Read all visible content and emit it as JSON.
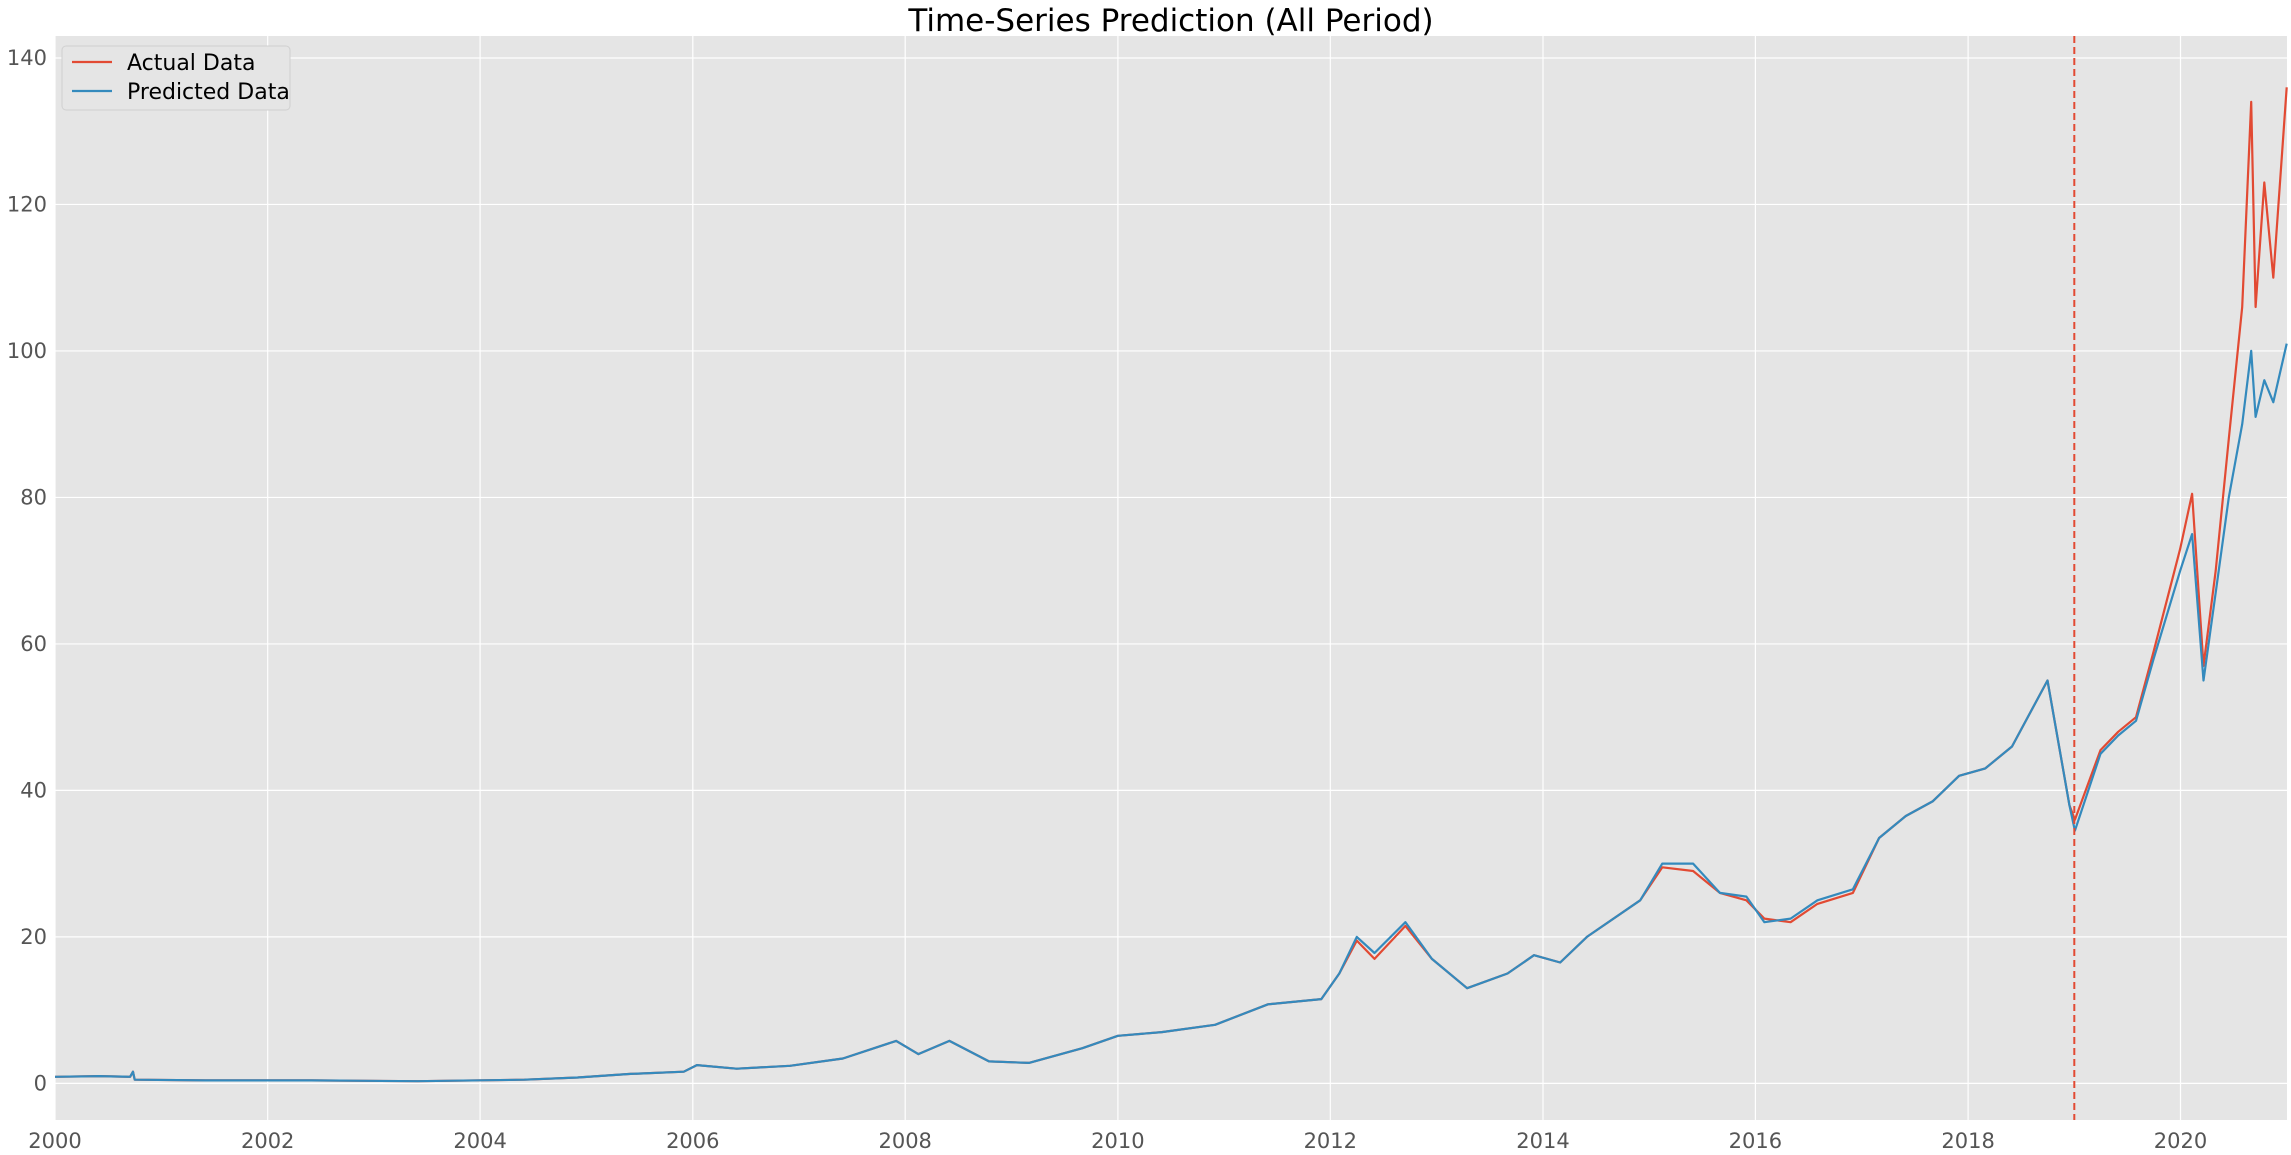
{
  "chart_data": {
    "type": "line",
    "title": "Time-Series Prediction (All Period)",
    "xlabel": "",
    "ylabel": "",
    "x_range": [
      "2000-01-01",
      "2021-01-01"
    ],
    "ylim": [
      -5,
      143
    ],
    "x_ticks": [
      "2000",
      "2002",
      "2004",
      "2006",
      "2008",
      "2010",
      "2012",
      "2014",
      "2016",
      "2018",
      "2020"
    ],
    "y_ticks": [
      0,
      20,
      40,
      60,
      80,
      100,
      120,
      140
    ],
    "grid": true,
    "legend_position": "upper left",
    "split_marker": {
      "date": "2019-01-01",
      "color": "#E24A33",
      "style": "dashed"
    },
    "series": [
      {
        "name": "Actual Data",
        "color": "#E24A33",
        "points": [
          [
            "2000-01-01",
            0.9
          ],
          [
            "2000-06-01",
            1.0
          ],
          [
            "2000-09-15",
            0.9
          ],
          [
            "2000-09-25",
            1.6
          ],
          [
            "2000-10-01",
            0.5
          ],
          [
            "2001-06-01",
            0.4
          ],
          [
            "2002-06-01",
            0.4
          ],
          [
            "2003-06-01",
            0.3
          ],
          [
            "2004-06-01",
            0.5
          ],
          [
            "2004-12-01",
            0.8
          ],
          [
            "2005-06-01",
            1.3
          ],
          [
            "2005-12-01",
            1.6
          ],
          [
            "2006-01-15",
            2.5
          ],
          [
            "2006-06-01",
            2.0
          ],
          [
            "2006-12-01",
            2.4
          ],
          [
            "2007-06-01",
            3.4
          ],
          [
            "2007-12-01",
            5.8
          ],
          [
            "2008-02-15",
            4.0
          ],
          [
            "2008-06-01",
            5.8
          ],
          [
            "2008-10-15",
            3.0
          ],
          [
            "2009-03-01",
            2.8
          ],
          [
            "2009-09-01",
            4.8
          ],
          [
            "2010-01-01",
            6.5
          ],
          [
            "2010-06-01",
            7.0
          ],
          [
            "2010-12-01",
            8.0
          ],
          [
            "2011-06-01",
            10.8
          ],
          [
            "2011-12-01",
            11.5
          ],
          [
            "2012-02-01",
            15.0
          ],
          [
            "2012-04-01",
            19.5
          ],
          [
            "2012-06-01",
            17.0
          ],
          [
            "2012-09-15",
            21.5
          ],
          [
            "2012-12-15",
            17.0
          ],
          [
            "2013-04-15",
            13.0
          ],
          [
            "2013-09-01",
            15.0
          ],
          [
            "2013-12-01",
            17.5
          ],
          [
            "2014-03-01",
            16.5
          ],
          [
            "2014-06-01",
            20.0
          ],
          [
            "2014-12-01",
            25.0
          ],
          [
            "2015-02-15",
            29.5
          ],
          [
            "2015-06-01",
            29.0
          ],
          [
            "2015-09-01",
            26.0
          ],
          [
            "2015-12-01",
            25.0
          ],
          [
            "2016-02-01",
            22.5
          ],
          [
            "2016-05-01",
            22.0
          ],
          [
            "2016-08-01",
            24.5
          ],
          [
            "2016-12-01",
            26.0
          ],
          [
            "2017-03-01",
            33.5
          ],
          [
            "2017-06-01",
            36.5
          ],
          [
            "2017-09-01",
            38.5
          ],
          [
            "2017-12-01",
            42.0
          ],
          [
            "2018-03-01",
            43.0
          ],
          [
            "2018-06-01",
            46.0
          ],
          [
            "2018-10-01",
            55.0
          ],
          [
            "2018-12-15",
            38.0
          ],
          [
            "2019-01-03",
            36.0
          ],
          [
            "2019-04-01",
            45.5
          ],
          [
            "2019-06-01",
            48.0
          ],
          [
            "2019-08-01",
            50.0
          ],
          [
            "2019-10-01",
            59.0
          ],
          [
            "2019-12-31",
            73.0
          ],
          [
            "2020-02-10",
            80.5
          ],
          [
            "2020-03-20",
            57.0
          ],
          [
            "2020-05-01",
            70.0
          ],
          [
            "2020-06-15",
            88.0
          ],
          [
            "2020-07-31",
            106.0
          ],
          [
            "2020-08-31",
            134.0
          ],
          [
            "2020-09-15",
            106.0
          ],
          [
            "2020-10-15",
            123.0
          ],
          [
            "2020-11-15",
            110.0
          ],
          [
            "2020-12-31",
            136.0
          ]
        ]
      },
      {
        "name": "Predicted Data",
        "color": "#348ABD",
        "points": [
          [
            "2000-01-01",
            0.9
          ],
          [
            "2000-06-01",
            1.0
          ],
          [
            "2000-09-15",
            0.9
          ],
          [
            "2000-09-25",
            1.6
          ],
          [
            "2000-10-01",
            0.5
          ],
          [
            "2001-06-01",
            0.4
          ],
          [
            "2002-06-01",
            0.4
          ],
          [
            "2003-06-01",
            0.3
          ],
          [
            "2004-06-01",
            0.5
          ],
          [
            "2004-12-01",
            0.8
          ],
          [
            "2005-06-01",
            1.3
          ],
          [
            "2005-12-01",
            1.6
          ],
          [
            "2006-01-15",
            2.5
          ],
          [
            "2006-06-01",
            2.0
          ],
          [
            "2006-12-01",
            2.4
          ],
          [
            "2007-06-01",
            3.4
          ],
          [
            "2007-12-01",
            5.8
          ],
          [
            "2008-02-15",
            4.0
          ],
          [
            "2008-06-01",
            5.8
          ],
          [
            "2008-10-15",
            3.0
          ],
          [
            "2009-03-01",
            2.8
          ],
          [
            "2009-09-01",
            4.8
          ],
          [
            "2010-01-01",
            6.5
          ],
          [
            "2010-06-01",
            7.0
          ],
          [
            "2010-12-01",
            8.0
          ],
          [
            "2011-06-01",
            10.8
          ],
          [
            "2011-12-01",
            11.5
          ],
          [
            "2012-02-01",
            15.0
          ],
          [
            "2012-04-01",
            20.0
          ],
          [
            "2012-06-01",
            17.8
          ],
          [
            "2012-09-15",
            22.0
          ],
          [
            "2012-12-15",
            17.0
          ],
          [
            "2013-04-15",
            13.0
          ],
          [
            "2013-09-01",
            15.0
          ],
          [
            "2013-12-01",
            17.5
          ],
          [
            "2014-03-01",
            16.5
          ],
          [
            "2014-06-01",
            20.0
          ],
          [
            "2014-12-01",
            25.0
          ],
          [
            "2015-02-15",
            30.0
          ],
          [
            "2015-06-01",
            30.0
          ],
          [
            "2015-09-01",
            26.0
          ],
          [
            "2015-12-01",
            25.5
          ],
          [
            "2016-02-01",
            22.0
          ],
          [
            "2016-05-01",
            22.5
          ],
          [
            "2016-08-01",
            25.0
          ],
          [
            "2016-12-01",
            26.5
          ],
          [
            "2017-03-01",
            33.5
          ],
          [
            "2017-06-01",
            36.5
          ],
          [
            "2017-09-01",
            38.5
          ],
          [
            "2017-12-01",
            42.0
          ],
          [
            "2018-03-01",
            43.0
          ],
          [
            "2018-06-01",
            46.0
          ],
          [
            "2018-10-01",
            55.0
          ],
          [
            "2018-12-15",
            38.0
          ],
          [
            "2019-01-03",
            34.5
          ],
          [
            "2019-04-01",
            45.0
          ],
          [
            "2019-06-01",
            47.5
          ],
          [
            "2019-08-01",
            49.5
          ],
          [
            "2019-10-01",
            58.0
          ],
          [
            "2019-12-31",
            70.0
          ],
          [
            "2020-02-10",
            75.0
          ],
          [
            "2020-03-20",
            55.0
          ],
          [
            "2020-05-01",
            67.0
          ],
          [
            "2020-06-15",
            80.0
          ],
          [
            "2020-07-31",
            90.0
          ],
          [
            "2020-08-31",
            100.0
          ],
          [
            "2020-09-15",
            91.0
          ],
          [
            "2020-10-15",
            96.0
          ],
          [
            "2020-11-15",
            93.0
          ],
          [
            "2020-12-31",
            101.0
          ]
        ]
      }
    ]
  }
}
